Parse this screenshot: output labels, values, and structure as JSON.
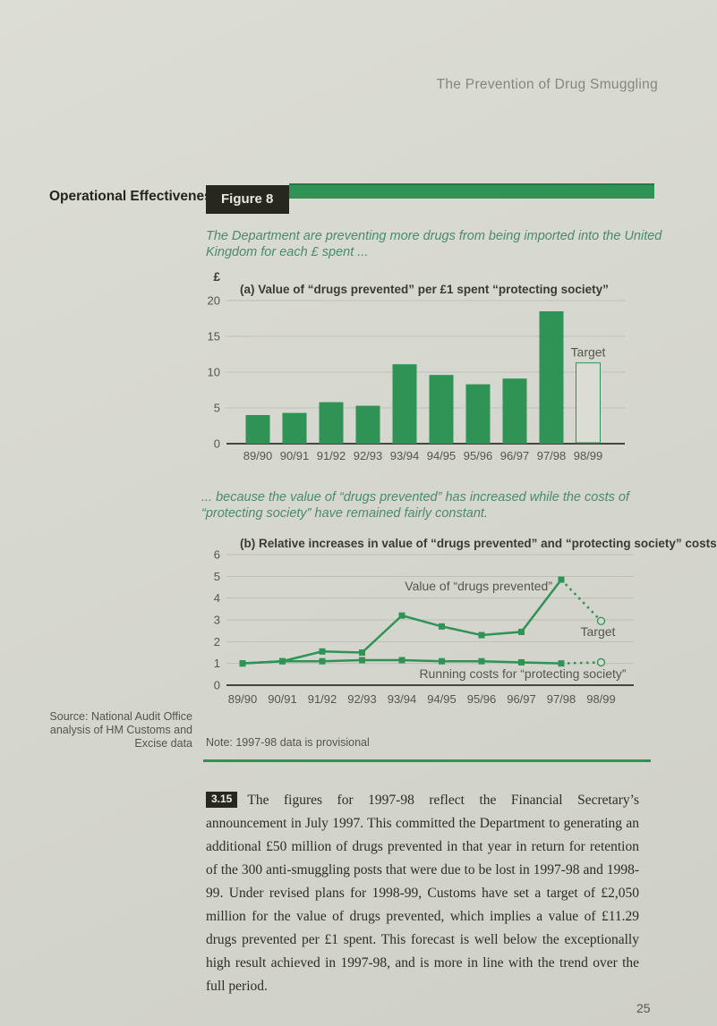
{
  "page": {
    "running_header": "The Prevention of Drug Smuggling",
    "section_label": "Operational Effectiveness",
    "figure_label": "Figure 8",
    "intro_caption": "The Department are preventing more drugs from being imported into the United Kingdom for each £ spent ...",
    "mid_caption": "... because the value of “drugs prevented” has increased while the costs of “protecting society” have remained fairly constant.",
    "source_lines": [
      "Source: National Audit Office",
      "analysis of HM Customs and",
      "Excise data"
    ],
    "note": "Note: 1997-98 data is provisional",
    "paragraph_number": "3.15",
    "paragraph_text": "The figures for 1997-98 reflect the Financial Secretary’s announcement in July 1997. This committed the Department to generating an additional £50 million of drugs prevented in that year in return for retention of the 300 anti-smuggling posts that were due to be lost in 1997-98 and 1998-99. Under revised plans for 1998-99, Customs have set a target of £2,050 million for the value of drugs prevented, which implies a value of £11.29 drugs prevented per £1 spent. This forecast is well below the exceptionally high result achieved in 1997-98, and is more in line with the trend over the full period.",
    "page_number": "25"
  },
  "colors": {
    "accent_green": "#2e9355",
    "caption_teal": "#4b8a6d",
    "paper": "#d6d7cf",
    "target_fill": "#dbdcd4",
    "grid": "#bdbfb6",
    "axis": "#45463f",
    "tick_text": "#54564e",
    "title_text": "#3a3b34",
    "label_text": "#54564e"
  },
  "chart_data": [
    {
      "type": "bar",
      "title": "(a) Value of “drugs prevented” per £1 spent “protecting society”",
      "ylabel": "£",
      "ylim": [
        0,
        20
      ],
      "yticks": [
        0,
        5,
        10,
        15,
        20
      ],
      "grid": true,
      "legend_position": "none",
      "categories": [
        "89/90",
        "90/91",
        "91/92",
        "92/93",
        "93/94",
        "94/95",
        "95/96",
        "96/97",
        "97/98",
        "98/99"
      ],
      "values": [
        4.0,
        4.3,
        5.8,
        5.3,
        11.1,
        9.6,
        8.3,
        9.1,
        18.5,
        null
      ],
      "target": {
        "category": "98/99",
        "value": 11.29,
        "label": "Target"
      }
    },
    {
      "type": "line",
      "title": "(b) Relative increases in value of “drugs prevented” and “protecting society” costs",
      "ylim": [
        0,
        6
      ],
      "yticks": [
        0,
        1,
        2,
        3,
        4,
        5,
        6
      ],
      "grid": true,
      "legend_position": "inline-annotations",
      "categories": [
        "89/90",
        "90/91",
        "91/92",
        "92/93",
        "93/94",
        "94/95",
        "95/96",
        "96/97",
        "97/98",
        "98/99"
      ],
      "series": [
        {
          "name": "Value of “drugs prevented”",
          "values": [
            1.0,
            1.1,
            1.55,
            1.5,
            3.2,
            2.7,
            2.3,
            2.45,
            4.85
          ],
          "target_value": 2.95
        },
        {
          "name": "Running costs for “protecting society”",
          "values": [
            1.0,
            1.1,
            1.1,
            1.15,
            1.15,
            1.1,
            1.1,
            1.05,
            1.0
          ],
          "target_value": 1.05
        }
      ],
      "target_label": "Target",
      "annotation": "dotted segments from 97/98 to open-circle targets at 98/99"
    }
  ]
}
